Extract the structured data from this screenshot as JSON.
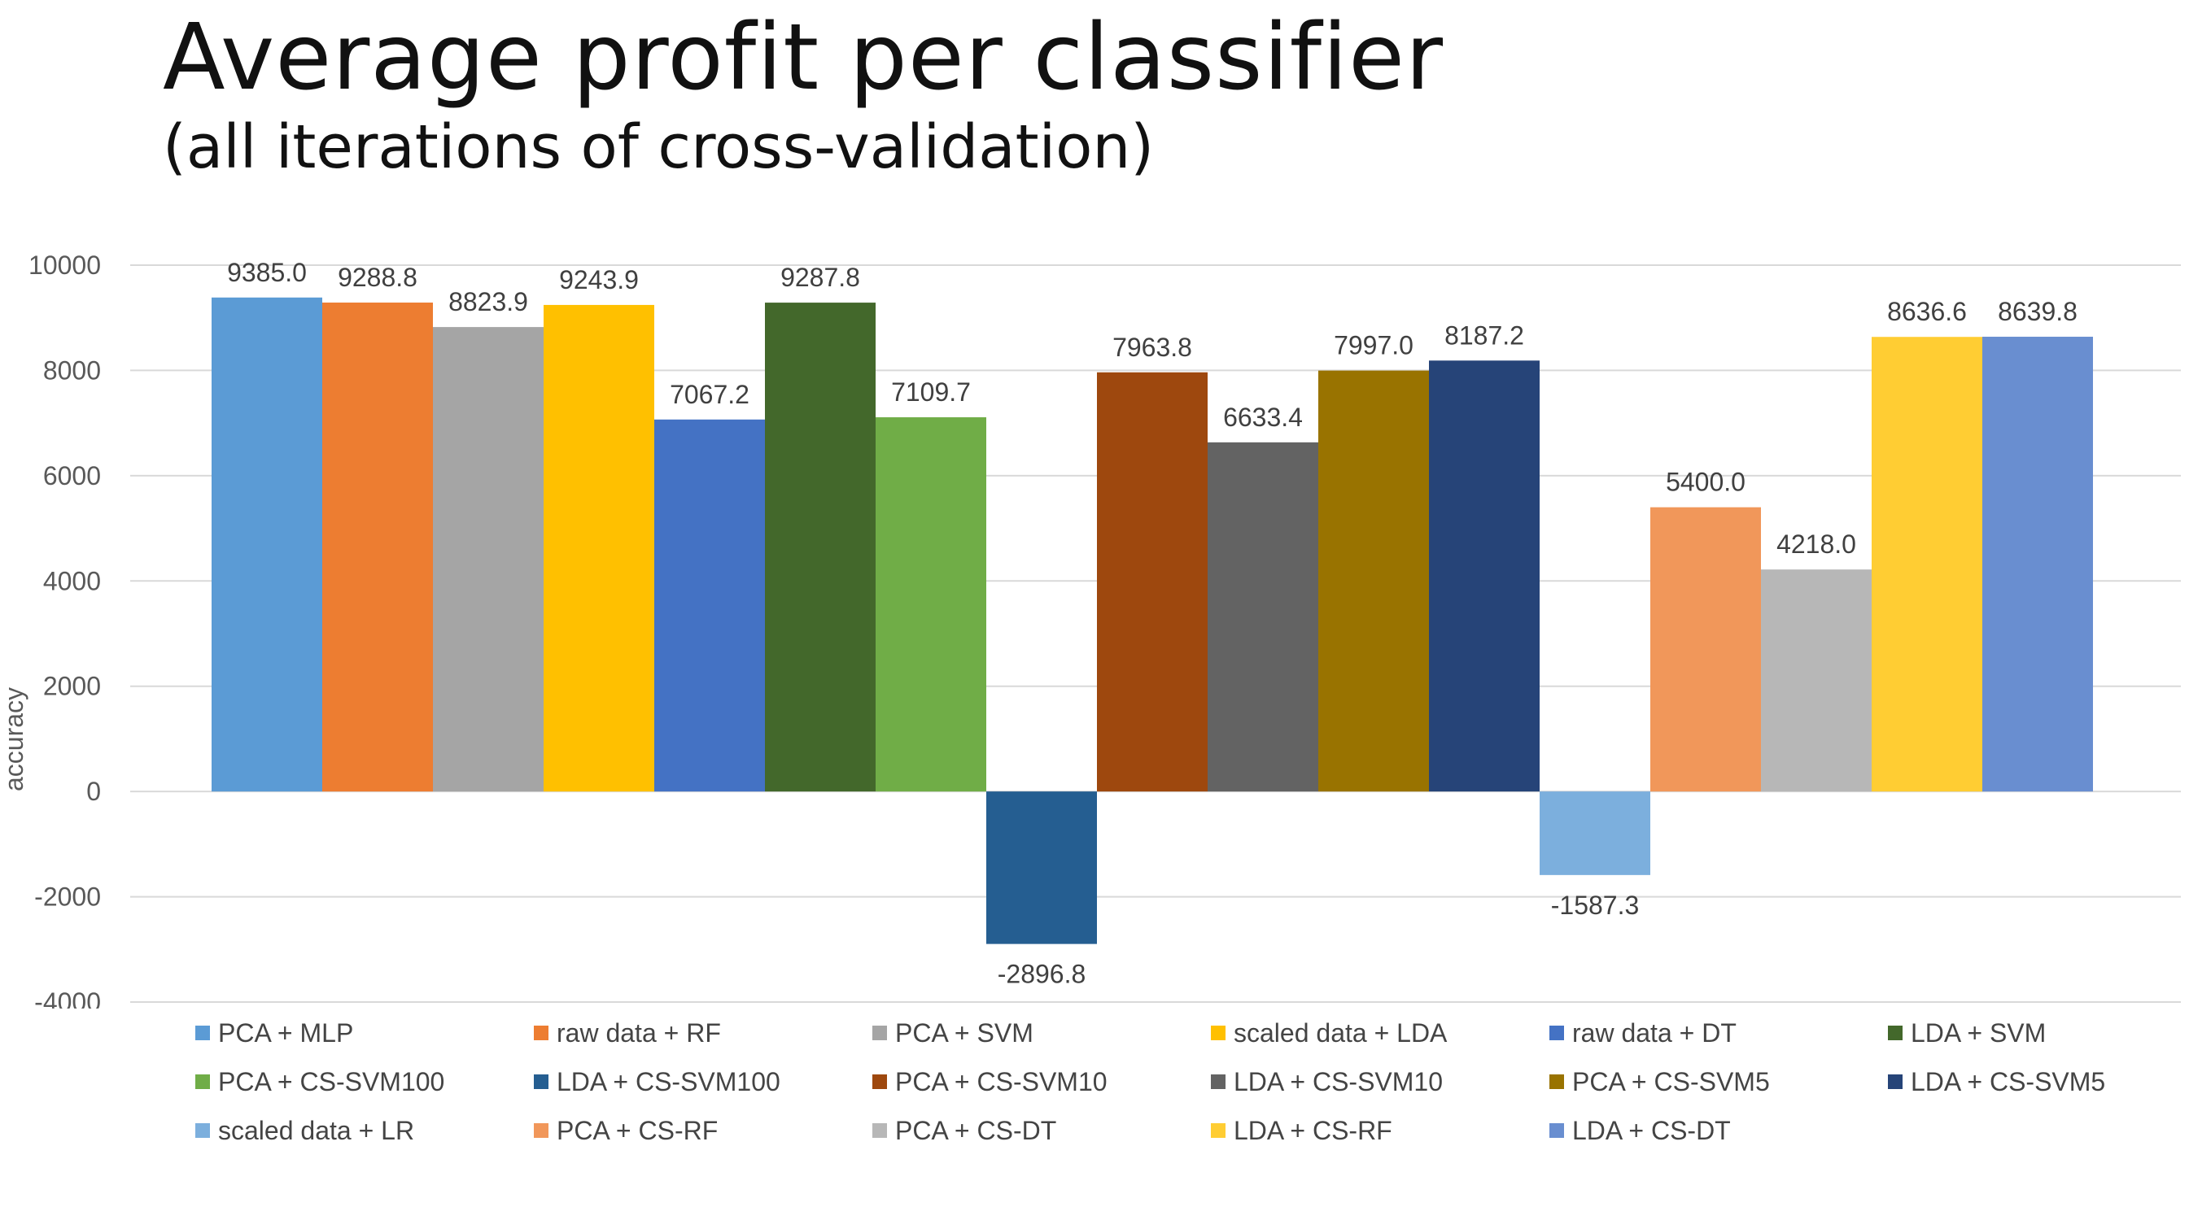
{
  "title": "Average profit per classifier",
  "subtitle": "(all iterations of cross-validation)",
  "chart_data": {
    "type": "bar",
    "title": "Average profit per classifier",
    "subtitle": "(all iterations of cross-validation)",
    "xlabel": "",
    "ylabel": "accuracy",
    "ylim": [
      -4000,
      10000
    ],
    "yticks": [
      -4000,
      -2000,
      0,
      2000,
      4000,
      6000,
      8000,
      10000
    ],
    "grid": true,
    "legend_position": "bottom",
    "series": [
      {
        "name": "PCA + MLP",
        "value": 9385.0,
        "label": "9385.0",
        "color": "#5B9BD5"
      },
      {
        "name": "raw data + RF",
        "value": 9288.8,
        "label": "9288.8",
        "color": "#ED7D31"
      },
      {
        "name": "PCA + SVM",
        "value": 8823.9,
        "label": "8823.9",
        "color": "#A5A5A5"
      },
      {
        "name": "scaled data + LDA",
        "value": 9243.9,
        "label": "9243.9",
        "color": "#FFC000"
      },
      {
        "name": "raw data + DT",
        "value": 7067.2,
        "label": "7067.2",
        "color": "#4472C4"
      },
      {
        "name": "LDA + SVM",
        "value": 9287.8,
        "label": "9287.8",
        "color": "#43682B"
      },
      {
        "name": "PCA + CS-SVM100",
        "value": 7109.7,
        "label": "7109.7",
        "color": "#70AD47"
      },
      {
        "name": "LDA + CS-SVM100",
        "value": -2896.8,
        "label": "-2896.8",
        "color": "#255E91"
      },
      {
        "name": "PCA + CS-SVM10",
        "value": 7963.8,
        "label": "7963.8",
        "color": "#9E480E"
      },
      {
        "name": "LDA + CS-SVM10",
        "value": 6633.4,
        "label": "6633.4",
        "color": "#636363"
      },
      {
        "name": "PCA + CS-SVM5",
        "value": 7997.0,
        "label": "7997.0",
        "color": "#997300"
      },
      {
        "name": "LDA + CS-SVM5",
        "value": 8187.2,
        "label": "8187.2",
        "color": "#264478"
      },
      {
        "name": "scaled data + LR",
        "value": -1587.3,
        "label": "-1587.3",
        "color": "#7CAFDD"
      },
      {
        "name": "PCA + CS-RF",
        "value": 5400.0,
        "label": "5400.0",
        "color": "#F1975A"
      },
      {
        "name": "PCA + CS-DT",
        "value": 4218.0,
        "label": "4218.0",
        "color": "#B7B7B7"
      },
      {
        "name": "LDA + CS-RF",
        "value": 8636.6,
        "label": "8636.6",
        "color": "#FFCD33"
      },
      {
        "name": "LDA + CS-DT",
        "value": 8639.8,
        "label": "8639.8",
        "color": "#698ED0"
      }
    ]
  }
}
